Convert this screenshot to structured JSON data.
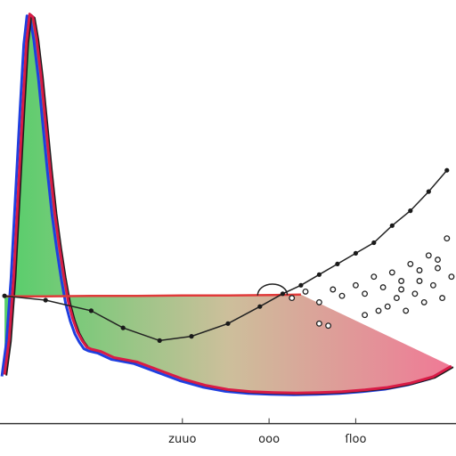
{
  "chart_data": {
    "type": "line",
    "title": "",
    "xlabel": "",
    "ylabel": "",
    "grid": false,
    "legend": "none",
    "xlim": [
      0,
      100
    ],
    "ylim": [
      0,
      100
    ],
    "x_ticks": [
      {
        "value": 40,
        "label": "zuuo"
      },
      {
        "value": 59,
        "label": "ooo"
      },
      {
        "value": 78,
        "label": "ſloo"
      }
    ],
    "series": [
      {
        "kind": "peak-curve",
        "color": "#d81b46",
        "x": [
          1,
          2,
          3,
          4,
          5,
          5.8,
          6.5,
          7.2,
          8,
          9,
          10,
          11,
          12,
          13,
          14,
          15,
          16,
          17,
          18,
          19,
          20,
          22,
          25,
          30,
          35,
          40,
          45,
          50,
          55,
          60,
          65,
          70,
          75,
          80,
          85,
          90,
          95,
          99
        ],
        "y": [
          12,
          20,
          35,
          55,
          75,
          90,
          96.7,
          96,
          91,
          82,
          71,
          60,
          50,
          42,
          35,
          29,
          25,
          22,
          20,
          18.5,
          18,
          17.5,
          16,
          15,
          13,
          11,
          9.5,
          8.5,
          8,
          7.8,
          7.7,
          7.8,
          8,
          8.4,
          9,
          10,
          11.5,
          14
        ]
      },
      {
        "kind": "flat-line",
        "color": "#e03a3a",
        "x": [
          1,
          10,
          20,
          30,
          40,
          50,
          60,
          66
        ],
        "y": [
          30.4,
          30.4,
          30.5,
          30.5,
          30.6,
          30.6,
          30.7,
          30.8
        ]
      },
      {
        "kind": "rising-curve",
        "color": "#222222",
        "x": [
          1,
          10,
          20,
          27,
          35,
          42,
          50,
          57,
          62,
          66,
          70,
          74,
          78,
          82,
          86,
          90,
          94,
          98
        ],
        "y": [
          30.5,
          29.5,
          27,
          23,
          20,
          21,
          24,
          28,
          31,
          33,
          35.5,
          38,
          40.5,
          43,
          47,
          50.5,
          55,
          60
        ]
      }
    ],
    "scatter_points": {
      "x": [
        64,
        67,
        70,
        73,
        75,
        78,
        80,
        82,
        84,
        86,
        88,
        90,
        92,
        94,
        96,
        98,
        85,
        87,
        89,
        91,
        93,
        95,
        97,
        99,
        80,
        83,
        88,
        92,
        96,
        70,
        72
      ],
      "y": [
        30,
        31.5,
        29,
        32,
        30.5,
        33,
        31,
        35,
        32.5,
        36,
        34,
        38,
        36.5,
        40,
        39,
        44,
        28,
        30,
        27,
        31,
        29,
        33,
        30,
        35,
        26,
        27,
        32,
        34,
        37,
        24,
        23.5
      ]
    }
  }
}
